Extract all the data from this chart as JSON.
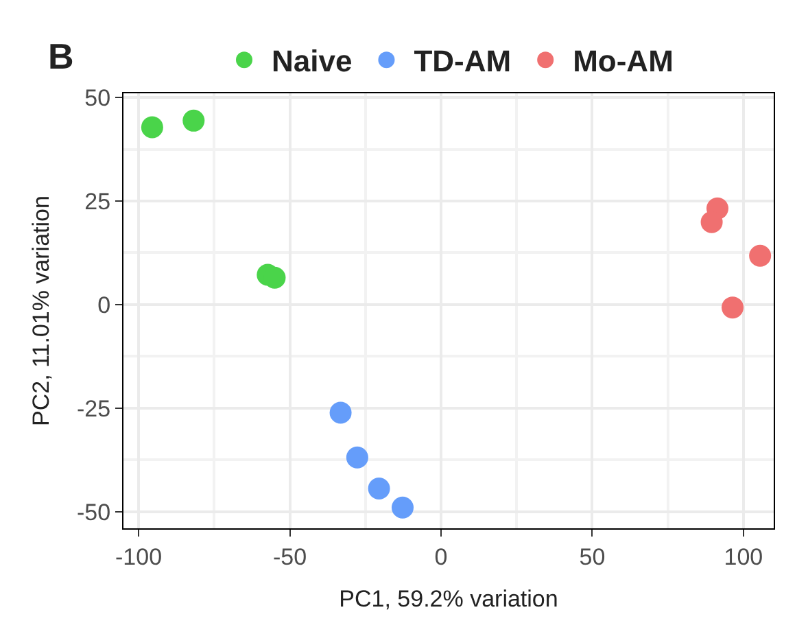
{
  "chart_data": {
    "type": "scatter",
    "xlabel": "PC1, 59.2% variation",
    "ylabel": "PC2, 11.01% variation",
    "annotations": [
      "B"
    ],
    "series": [
      {
        "name": "Naive",
        "color": "#4ad44a",
        "x": [
          -95.5,
          -81.8,
          -57.3,
          -55
        ],
        "values": [
          42.8,
          44.4,
          7.2,
          6.5
        ]
      },
      {
        "name": "TD-AM",
        "color": "#659dfa",
        "x": [
          -33.2,
          -27.7,
          -20.5,
          -12.7
        ],
        "values": [
          -26.1,
          -36.9,
          -44.4,
          -49
        ]
      },
      {
        "name": "Mo-AM",
        "color": "#f07070",
        "x": [
          91.4,
          89.5,
          105.5,
          96.4
        ],
        "values": [
          23.2,
          19.9,
          11.8,
          -0.7
        ]
      }
    ],
    "xlim": [
      -105,
      110
    ],
    "ylim": [
      -54,
      51
    ],
    "xticks": [
      -100,
      -50,
      0,
      50,
      100
    ],
    "yticks": [
      -50,
      -25,
      0,
      25,
      50
    ],
    "grid": true,
    "legend": "top",
    "marker": "circle"
  }
}
